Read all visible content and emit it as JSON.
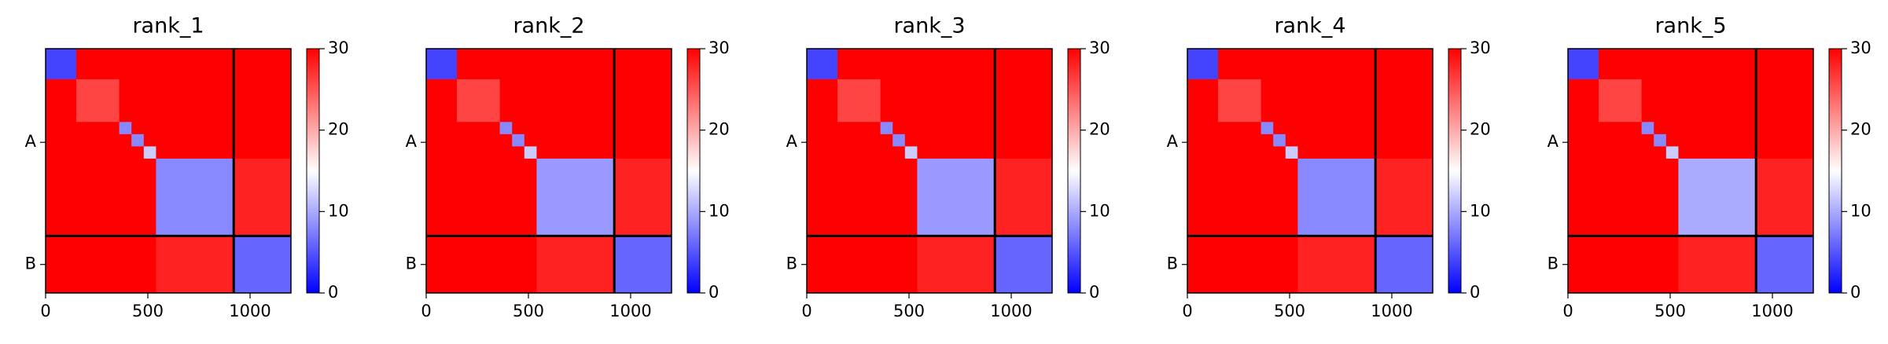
{
  "chart_data": [
    {
      "type": "heatmap",
      "title": "rank_1",
      "xlim": [
        0,
        1200
      ],
      "xticks": [
        0,
        500,
        1000
      ],
      "ylim": [
        1200,
        0
      ],
      "yticks": [
        {
          "value": 460,
          "label": "A"
        },
        {
          "value": 1060,
          "label": "B"
        }
      ],
      "chain_breaks": [
        920
      ],
      "cell_edges": [
        0,
        150,
        360,
        420,
        480,
        540,
        920,
        1200
      ],
      "clim": [
        0,
        30
      ],
      "cticks": [
        0,
        10,
        20,
        30
      ],
      "colormap": "bwr",
      "values": [
        [
          4,
          30,
          30,
          30,
          30,
          30,
          30
        ],
        [
          30,
          26,
          30,
          30,
          30,
          30,
          30
        ],
        [
          30,
          30,
          8,
          30,
          30,
          30,
          30
        ],
        [
          30,
          30,
          30,
          8,
          30,
          30,
          30
        ],
        [
          30,
          30,
          30,
          30,
          12,
          30,
          30
        ],
        [
          30,
          30,
          30,
          30,
          30,
          8,
          28
        ],
        [
          30,
          30,
          30,
          30,
          30,
          28,
          6
        ]
      ]
    },
    {
      "type": "heatmap",
      "title": "rank_2",
      "xlim": [
        0,
        1200
      ],
      "xticks": [
        0,
        500,
        1000
      ],
      "ylim": [
        1200,
        0
      ],
      "yticks": [
        {
          "value": 460,
          "label": "A"
        },
        {
          "value": 1060,
          "label": "B"
        }
      ],
      "chain_breaks": [
        920
      ],
      "cell_edges": [
        0,
        150,
        360,
        420,
        480,
        540,
        920,
        1200
      ],
      "clim": [
        0,
        30
      ],
      "cticks": [
        0,
        10,
        20,
        30
      ],
      "colormap": "bwr",
      "values": [
        [
          4,
          30,
          30,
          30,
          30,
          30,
          30
        ],
        [
          30,
          26,
          30,
          30,
          30,
          30,
          30
        ],
        [
          30,
          30,
          8,
          30,
          30,
          30,
          30
        ],
        [
          30,
          30,
          30,
          8,
          30,
          30,
          30
        ],
        [
          30,
          30,
          30,
          30,
          12,
          30,
          30
        ],
        [
          30,
          30,
          30,
          30,
          30,
          9,
          28
        ],
        [
          30,
          30,
          30,
          30,
          30,
          28,
          6
        ]
      ]
    },
    {
      "type": "heatmap",
      "title": "rank_3",
      "xlim": [
        0,
        1200
      ],
      "xticks": [
        0,
        500,
        1000
      ],
      "ylim": [
        1200,
        0
      ],
      "yticks": [
        {
          "value": 460,
          "label": "A"
        },
        {
          "value": 1060,
          "label": "B"
        }
      ],
      "chain_breaks": [
        920
      ],
      "cell_edges": [
        0,
        150,
        360,
        420,
        480,
        540,
        920,
        1200
      ],
      "clim": [
        0,
        30
      ],
      "cticks": [
        0,
        10,
        20,
        30
      ],
      "colormap": "bwr",
      "values": [
        [
          4,
          30,
          30,
          30,
          30,
          30,
          30
        ],
        [
          30,
          26,
          30,
          30,
          30,
          30,
          30
        ],
        [
          30,
          30,
          8,
          30,
          30,
          30,
          30
        ],
        [
          30,
          30,
          30,
          8,
          30,
          30,
          30
        ],
        [
          30,
          30,
          30,
          30,
          12,
          30,
          30
        ],
        [
          30,
          30,
          30,
          30,
          30,
          9,
          28
        ],
        [
          30,
          30,
          30,
          30,
          30,
          28,
          6
        ]
      ]
    },
    {
      "type": "heatmap",
      "title": "rank_4",
      "xlim": [
        0,
        1200
      ],
      "xticks": [
        0,
        500,
        1000
      ],
      "ylim": [
        1200,
        0
      ],
      "yticks": [
        {
          "value": 460,
          "label": "A"
        },
        {
          "value": 1060,
          "label": "B"
        }
      ],
      "chain_breaks": [
        920
      ],
      "cell_edges": [
        0,
        150,
        360,
        420,
        480,
        540,
        920,
        1200
      ],
      "clim": [
        0,
        30
      ],
      "cticks": [
        0,
        10,
        20,
        30
      ],
      "colormap": "bwr",
      "values": [
        [
          4,
          30,
          30,
          30,
          30,
          30,
          30
        ],
        [
          30,
          26,
          30,
          30,
          30,
          30,
          30
        ],
        [
          30,
          30,
          8,
          30,
          30,
          30,
          30
        ],
        [
          30,
          30,
          30,
          8,
          30,
          30,
          30
        ],
        [
          30,
          30,
          30,
          30,
          12,
          30,
          30
        ],
        [
          30,
          30,
          30,
          30,
          30,
          8,
          28
        ],
        [
          30,
          30,
          30,
          30,
          30,
          28,
          6
        ]
      ]
    },
    {
      "type": "heatmap",
      "title": "rank_5",
      "xlim": [
        0,
        1200
      ],
      "xticks": [
        0,
        500,
        1000
      ],
      "ylim": [
        1200,
        0
      ],
      "yticks": [
        {
          "value": 460,
          "label": "A"
        },
        {
          "value": 1060,
          "label": "B"
        }
      ],
      "chain_breaks": [
        920
      ],
      "cell_edges": [
        0,
        150,
        360,
        420,
        480,
        540,
        920,
        1200
      ],
      "clim": [
        0,
        30
      ],
      "cticks": [
        0,
        10,
        20,
        30
      ],
      "colormap": "bwr",
      "values": [
        [
          4,
          30,
          30,
          30,
          30,
          30,
          30
        ],
        [
          30,
          26,
          30,
          30,
          30,
          30,
          30
        ],
        [
          30,
          30,
          8,
          30,
          30,
          30,
          30
        ],
        [
          30,
          30,
          30,
          8,
          30,
          30,
          30
        ],
        [
          30,
          30,
          30,
          30,
          12,
          30,
          30
        ],
        [
          30,
          30,
          30,
          30,
          30,
          10,
          28
        ],
        [
          30,
          30,
          30,
          30,
          30,
          28,
          6
        ]
      ]
    }
  ]
}
